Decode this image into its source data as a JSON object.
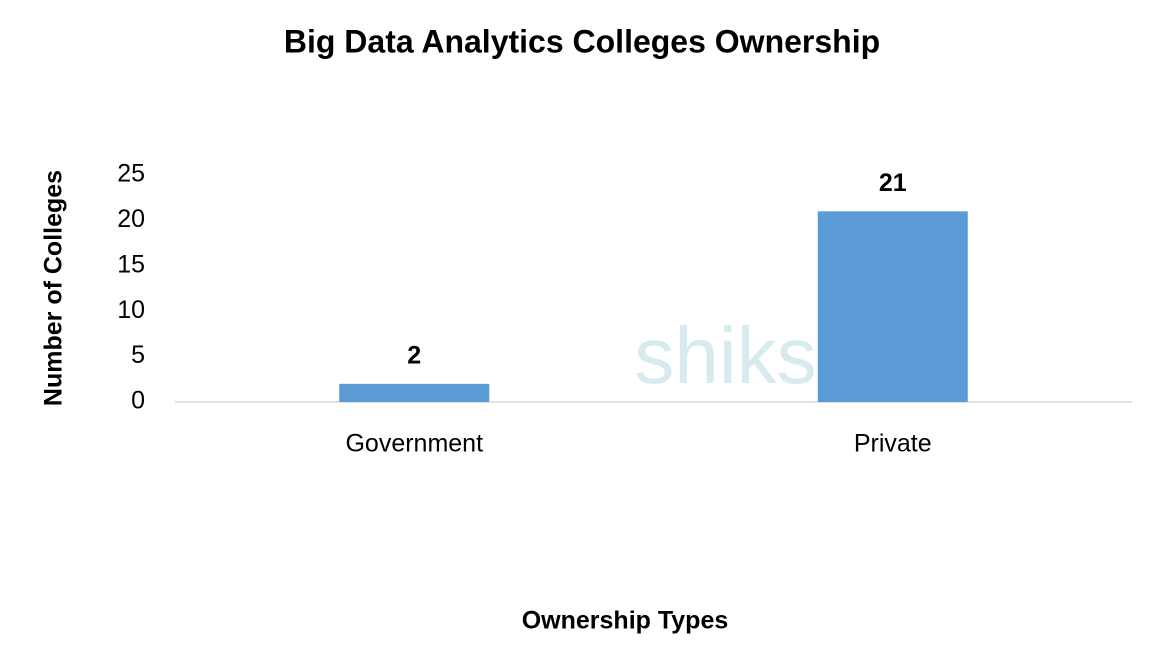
{
  "chart_data": {
    "type": "bar",
    "title": "Big Data Analytics Colleges Ownership",
    "x_label": "Ownership Types",
    "y_label": "Number of Colleges",
    "watermark": "shiksha",
    "categories": [
      "Government",
      "Private"
    ],
    "values": [
      2,
      21
    ],
    "color": "#5b9bd5",
    "ylim": [
      0,
      25
    ],
    "yticks": [
      0,
      5,
      10,
      15,
      20,
      25
    ],
    "grid": false
  }
}
